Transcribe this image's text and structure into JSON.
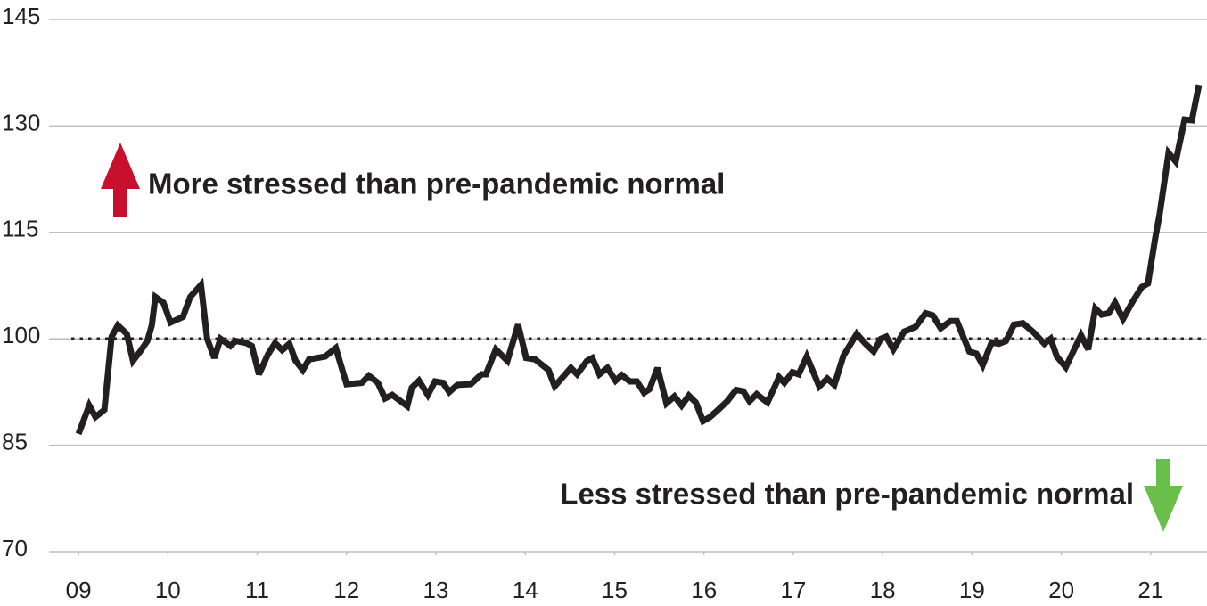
{
  "chart_data": {
    "type": "line",
    "annotations": [
      "More stressed than pre-pandemic normal",
      "Less stressed than pre-pandemic normal"
    ],
    "reference_line": 100,
    "xlim": [
      8.67,
      21.63
    ],
    "xticks": [
      {
        "value": 9,
        "label": "09"
      },
      10,
      11,
      12,
      13,
      14,
      15,
      16,
      17,
      18,
      19,
      20,
      21
    ],
    "ylim": [
      70,
      145
    ],
    "yticks": [
      70,
      85,
      100,
      115,
      130,
      145
    ],
    "grid": true,
    "series": [
      {
        "color": "#231f20",
        "x": [
          9.0,
          9.12,
          9.19,
          9.29,
          9.37,
          9.44,
          9.54,
          9.61,
          9.69,
          9.77,
          9.82,
          9.86,
          9.95,
          10.03,
          10.17,
          10.25,
          10.37,
          10.44,
          10.52,
          10.59,
          10.7,
          10.76,
          10.88,
          10.94,
          11.02,
          11.12,
          11.2,
          11.28,
          11.36,
          11.43,
          11.51,
          11.58,
          11.76,
          11.88,
          12.0,
          12.17,
          12.25,
          12.35,
          12.43,
          12.51,
          12.68,
          12.73,
          12.81,
          12.91,
          12.99,
          13.08,
          13.15,
          13.24,
          13.39,
          13.51,
          13.56,
          13.67,
          13.8,
          13.92,
          14.01,
          14.11,
          14.26,
          14.33,
          14.51,
          14.58,
          14.69,
          14.75,
          14.83,
          14.92,
          15.01,
          15.08,
          15.17,
          15.25,
          15.33,
          15.39,
          15.48,
          15.58,
          15.67,
          15.75,
          15.83,
          15.91,
          15.99,
          16.07,
          16.16,
          16.26,
          16.36,
          16.44,
          16.51,
          16.59,
          16.71,
          16.84,
          16.9,
          16.99,
          17.06,
          17.15,
          17.2,
          17.29,
          17.38,
          17.46,
          17.56,
          17.71,
          17.8,
          17.9,
          17.98,
          18.04,
          18.12,
          18.24,
          18.37,
          18.48,
          18.56,
          18.65,
          18.76,
          18.83,
          18.97,
          19.05,
          19.12,
          19.22,
          19.3,
          19.38,
          19.47,
          19.57,
          19.69,
          19.81,
          19.88,
          19.95,
          20.05,
          20.22,
          20.3,
          20.38,
          20.45,
          20.53,
          20.6,
          20.69,
          20.8,
          20.9,
          20.97,
          21.05,
          21.1,
          21.2,
          21.28,
          21.38,
          21.46,
          21.54
        ],
        "values": [
          86.6,
          90.6,
          89.0,
          90.0,
          100.3,
          101.9,
          100.7,
          96.9,
          98.2,
          99.7,
          101.9,
          105.9,
          105.1,
          102.3,
          103.1,
          105.9,
          107.6,
          100.0,
          97.3,
          100.0,
          99.0,
          99.7,
          99.4,
          99.0,
          95.0,
          97.8,
          99.4,
          98.4,
          99.3,
          96.9,
          95.6,
          97.1,
          97.5,
          98.7,
          93.6,
          93.8,
          94.8,
          93.8,
          91.6,
          92.1,
          90.5,
          93.1,
          94.1,
          92.1,
          94.0,
          93.8,
          92.5,
          93.5,
          93.6,
          95.0,
          95.0,
          98.5,
          96.9,
          102.0,
          97.3,
          97.1,
          95.6,
          93.3,
          95.9,
          95.0,
          96.9,
          97.3,
          95.0,
          95.9,
          94.1,
          94.9,
          94.0,
          94.0,
          92.4,
          92.9,
          95.9,
          90.9,
          91.9,
          90.6,
          92.0,
          91.0,
          88.4,
          89.0,
          90.0,
          91.2,
          92.8,
          92.6,
          91.2,
          92.2,
          91.0,
          94.6,
          93.8,
          95.3,
          95.0,
          97.5,
          96.0,
          93.3,
          94.4,
          93.5,
          97.6,
          100.7,
          99.4,
          98.2,
          100.0,
          100.3,
          98.5,
          101.0,
          101.7,
          103.6,
          103.3,
          101.5,
          102.5,
          102.5,
          98.2,
          97.9,
          96.3,
          99.5,
          99.3,
          99.7,
          102.0,
          102.2,
          100.9,
          99.3,
          100.0,
          97.5,
          96.0,
          100.5,
          98.5,
          104.3,
          103.4,
          103.6,
          105.1,
          102.8,
          105.3,
          107.3,
          107.8,
          114.2,
          117.6,
          126.2,
          125.0,
          130.9,
          130.8,
          135.8
        ]
      }
    ]
  }
}
